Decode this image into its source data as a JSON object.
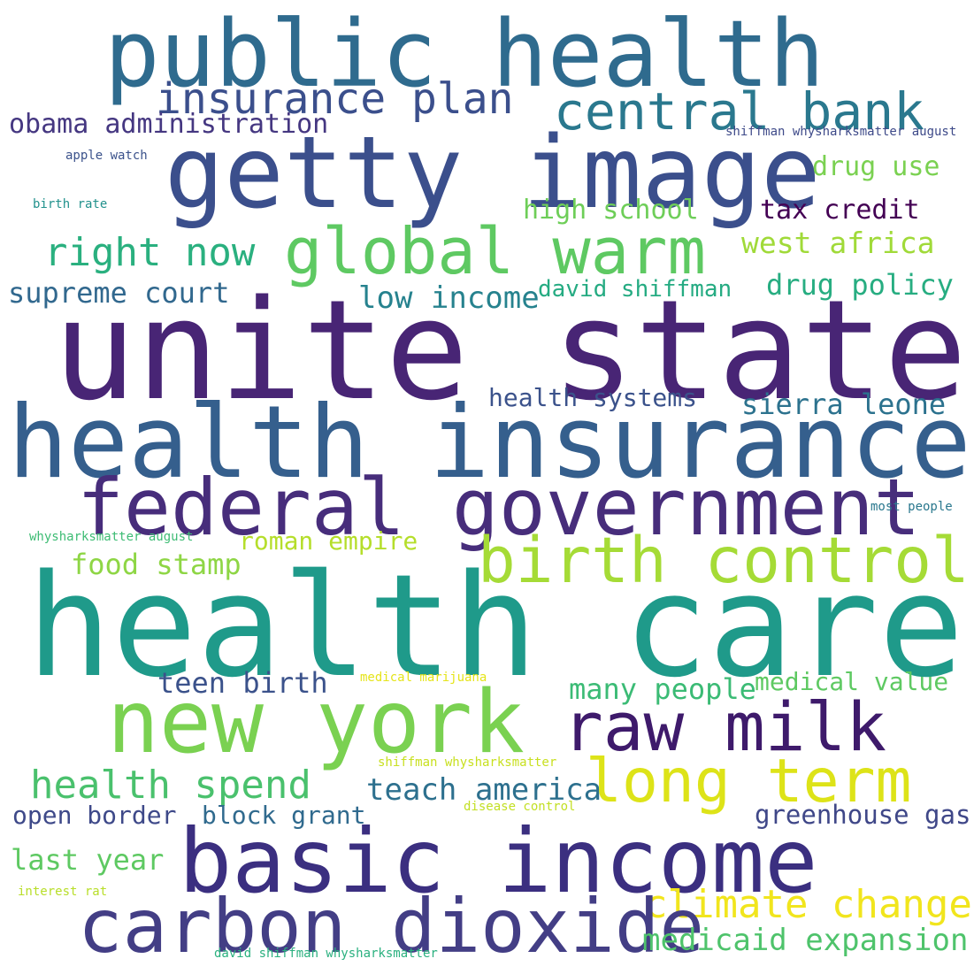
{
  "words": [
    {
      "text": "public health",
      "color": "#2f6b8e"
    },
    {
      "text": "getty image",
      "color": "#3b4f8c"
    },
    {
      "text": "insurance plan",
      "color": "#3b4f8c"
    },
    {
      "text": "central bank",
      "color": "#2a788e"
    },
    {
      "text": "obama administration",
      "color": "#453781"
    },
    {
      "text": "shiffman whysharksmatter august",
      "color": "#3e4a89"
    },
    {
      "text": "apple watch",
      "color": "#3b528b"
    },
    {
      "text": "drug use",
      "color": "#7ad151"
    },
    {
      "text": "birth rate",
      "color": "#21918c"
    },
    {
      "text": "high school",
      "color": "#6ece58"
    },
    {
      "text": "tax credit",
      "color": "#440154"
    },
    {
      "text": "right now",
      "color": "#2ab07f"
    },
    {
      "text": "global warm",
      "color": "#5ec962"
    },
    {
      "text": "west africa",
      "color": "#a0da39"
    },
    {
      "text": "supreme court",
      "color": "#31688e"
    },
    {
      "text": "low income",
      "color": "#26828e"
    },
    {
      "text": "david shiffman",
      "color": "#25ab82"
    },
    {
      "text": "drug policy",
      "color": "#27ad81"
    },
    {
      "text": "unite state",
      "color": "#482575"
    },
    {
      "text": "health systems",
      "color": "#3b528b"
    },
    {
      "text": "sierra leone",
      "color": "#2c728e"
    },
    {
      "text": "health insurance",
      "color": "#355f8d"
    },
    {
      "text": "federal government",
      "color": "#472d7b"
    },
    {
      "text": "most people",
      "color": "#2a788e"
    },
    {
      "text": "whysharksmatter august",
      "color": "#3dbc74"
    },
    {
      "text": "roman empire",
      "color": "#b5de2b"
    },
    {
      "text": "birth control",
      "color": "#a5db36"
    },
    {
      "text": "food stamp",
      "color": "#8ed645"
    },
    {
      "text": "health care",
      "color": "#1f9a8a"
    },
    {
      "text": "medical marijuana",
      "color": "#e5e419"
    },
    {
      "text": "teen birth",
      "color": "#3b528b"
    },
    {
      "text": "many people",
      "color": "#3bbb75"
    },
    {
      "text": "medical value",
      "color": "#5ec962"
    },
    {
      "text": "new york",
      "color": "#7ad151"
    },
    {
      "text": "raw milk",
      "color": "#3e1a6b"
    },
    {
      "text": "shiffman whysharksmatter",
      "color": "#c8e020"
    },
    {
      "text": "health spend",
      "color": "#4ac16d"
    },
    {
      "text": "teach america",
      "color": "#2d708e"
    },
    {
      "text": "long term",
      "color": "#dde318"
    },
    {
      "text": "open border",
      "color": "#3e4989"
    },
    {
      "text": "block grant",
      "color": "#306a8e"
    },
    {
      "text": "disease control",
      "color": "#c2df23"
    },
    {
      "text": "greenhouse gas",
      "color": "#3f4788"
    },
    {
      "text": "basic income",
      "color": "#3b2f80"
    },
    {
      "text": "last year",
      "color": "#5ec962"
    },
    {
      "text": "interest rat",
      "color": "#b8de29"
    },
    {
      "text": "climate change",
      "color": "#f1e51d"
    },
    {
      "text": "carbon dioxide",
      "color": "#433e85"
    },
    {
      "text": "medicaid expansion",
      "color": "#4ec36b"
    },
    {
      "text": "david shiffman whysharksmatter",
      "color": "#2ab07f"
    }
  ]
}
